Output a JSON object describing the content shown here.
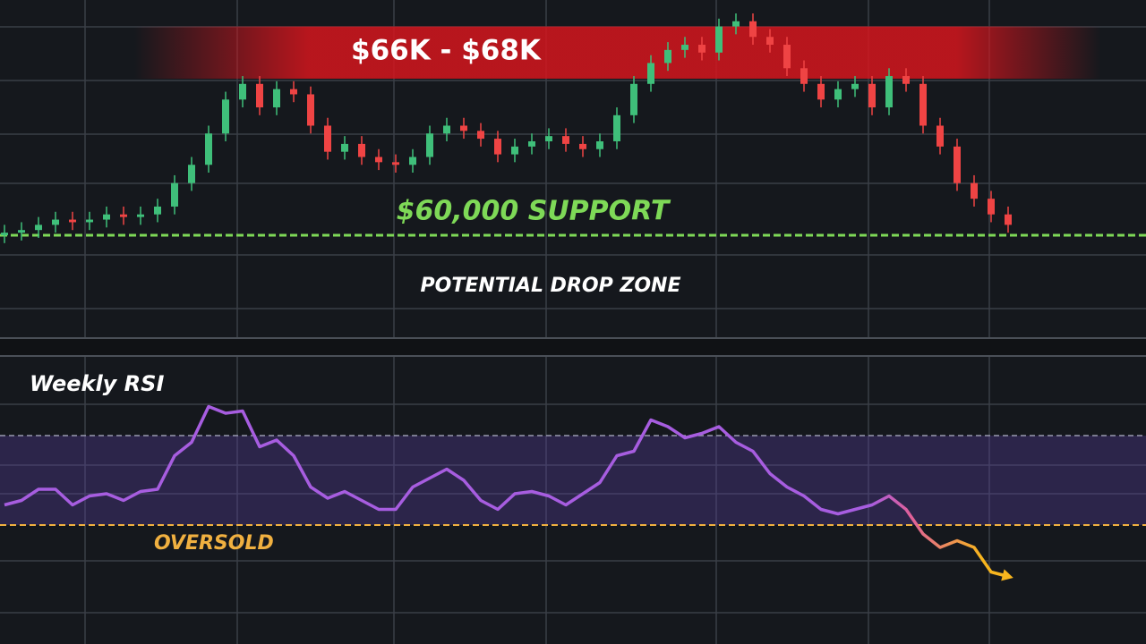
{
  "chart_data": [
    {
      "type": "candlestick",
      "ylim": [
        57500,
        68500
      ],
      "resistance_zone": {
        "label": "$66K - $68K",
        "low": 66000,
        "high": 68000,
        "color": "#d4151d"
      },
      "support": {
        "label": "$60,000 SUPPORT",
        "value": 60000,
        "color": "#7ed957"
      },
      "drop_zone_label": "POTENTIAL DROP ZONE",
      "up_color": "#3fbf7a",
      "down_color": "#ef4444",
      "open": [
        60000,
        60100,
        60200,
        60400,
        60600,
        60500,
        60600,
        60800,
        60700,
        60800,
        61100,
        62000,
        62700,
        63900,
        65200,
        65800,
        64900,
        65600,
        65400,
        64200,
        63200,
        63500,
        63000,
        62800,
        62700,
        63000,
        63900,
        64200,
        64000,
        63700,
        63100,
        63400,
        63600,
        63800,
        63500,
        63300,
        63600,
        64600,
        65800,
        66600,
        67100,
        67300,
        67000,
        68000,
        68200,
        67600,
        67300,
        66400,
        65800,
        65200,
        65600,
        65800,
        64900,
        66100,
        65800,
        64200,
        63400,
        62000,
        61400,
        60800
      ],
      "high": [
        60400,
        60500,
        60700,
        60900,
        60900,
        60900,
        61100,
        61100,
        61100,
        61400,
        62300,
        63000,
        64200,
        65500,
        66100,
        66100,
        65900,
        65900,
        65700,
        64500,
        63800,
        63800,
        63300,
        63100,
        63300,
        64200,
        64500,
        64500,
        64300,
        64000,
        63700,
        63900,
        64100,
        64100,
        63800,
        63900,
        64900,
        66100,
        66900,
        67400,
        67600,
        67600,
        68300,
        68500,
        68500,
        67900,
        67600,
        66700,
        66100,
        65900,
        66100,
        66100,
        66400,
        66400,
        66100,
        64500,
        63700,
        62300,
        61700,
        61100
      ],
      "low": [
        59700,
        59800,
        59900,
        60100,
        60200,
        60200,
        60300,
        60400,
        60400,
        60500,
        60800,
        61700,
        62400,
        63600,
        64900,
        64600,
        64600,
        65100,
        63900,
        62900,
        62900,
        62700,
        62500,
        62400,
        62400,
        62700,
        63600,
        63700,
        63400,
        62800,
        62800,
        63100,
        63300,
        63200,
        63000,
        63000,
        63300,
        64300,
        65500,
        66300,
        66800,
        66700,
        66700,
        67700,
        67300,
        67000,
        66100,
        65500,
        64900,
        64900,
        65300,
        64600,
        64600,
        65500,
        63900,
        63100,
        61700,
        61100,
        60500,
        60100
      ],
      "close": [
        60100,
        60200,
        60400,
        60600,
        60500,
        60600,
        60800,
        60700,
        60800,
        61100,
        62000,
        62700,
        63900,
        65200,
        65800,
        64900,
        65600,
        65400,
        64200,
        63200,
        63500,
        63000,
        62800,
        62700,
        63000,
        63900,
        64200,
        64000,
        63700,
        63100,
        63400,
        63600,
        63800,
        63500,
        63300,
        63600,
        64600,
        65800,
        66600,
        67100,
        67300,
        67000,
        68000,
        68200,
        67600,
        67300,
        66400,
        65800,
        65200,
        65600,
        65800,
        64900,
        66100,
        65800,
        64200,
        63400,
        62000,
        61400,
        60800,
        60400
      ]
    },
    {
      "type": "line",
      "title": "Weekly RSI",
      "ylim": [
        0,
        100
      ],
      "upper_band": 70,
      "oversold": {
        "label": "OVERSOLD",
        "value": 30,
        "color": "#f0b040"
      },
      "color": "#a75de0",
      "end_color": "#f7b51e",
      "values": [
        39,
        41,
        46,
        46,
        39,
        43,
        44,
        41,
        45,
        46,
        61,
        67,
        83,
        80,
        81,
        65,
        68,
        61,
        47,
        42,
        45,
        41,
        37,
        37,
        47,
        51,
        55,
        50,
        41,
        37,
        44,
        45,
        43,
        39,
        44,
        49,
        61,
        63,
        77,
        74,
        69,
        71,
        74,
        67,
        63,
        53,
        47,
        43,
        37,
        35,
        37,
        39,
        43,
        37,
        26,
        20,
        23,
        20,
        9,
        7
      ]
    }
  ]
}
